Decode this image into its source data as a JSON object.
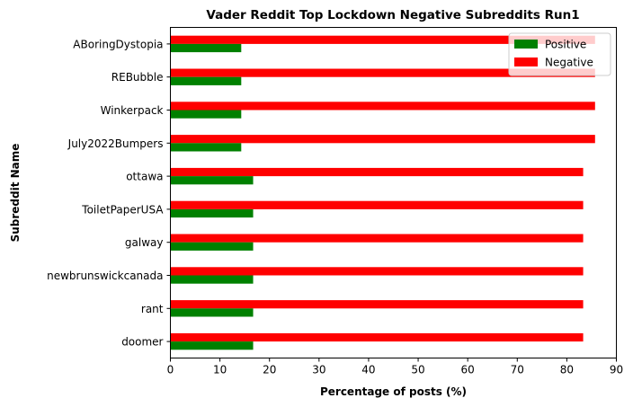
{
  "chart_data": {
    "type": "bar",
    "orientation": "horizontal",
    "title": "Vader Reddit Top Lockdown Negative Subreddits Run1",
    "xlabel": "Percentage of posts (%)",
    "ylabel": "Subreddit Name",
    "xlim": [
      0,
      90
    ],
    "xticks": [
      0,
      10,
      20,
      30,
      40,
      50,
      60,
      70,
      80,
      90
    ],
    "grid": false,
    "legend_position": "top-right",
    "categories": [
      "ABoringDystopia",
      "REBubble",
      "Winkerpack",
      "July2022Bumpers",
      "ottawa",
      "ToiletPaperUSA",
      "galway",
      "newbrunswickcanada",
      "rant",
      "doomer"
    ],
    "series": [
      {
        "name": "Positive",
        "color": "#008000",
        "values": [
          14.3,
          14.3,
          14.3,
          14.3,
          16.7,
          16.7,
          16.7,
          16.7,
          16.7,
          16.7
        ]
      },
      {
        "name": "Negative",
        "color": "#ff0000",
        "values": [
          85.7,
          85.7,
          85.7,
          85.7,
          83.3,
          83.3,
          83.3,
          83.3,
          83.3,
          83.3
        ]
      }
    ]
  }
}
